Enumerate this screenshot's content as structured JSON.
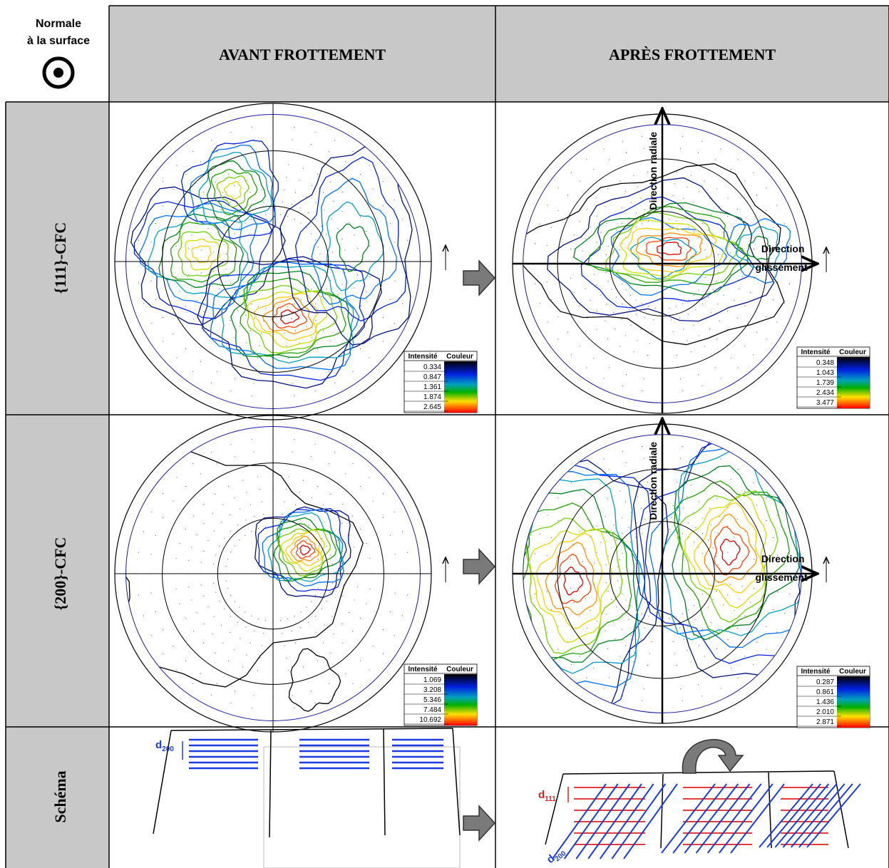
{
  "header": {
    "corner": [
      "Normale",
      "à la surface"
    ],
    "columns": [
      "AVANT FROTTEMENT",
      "APRÈS FROTTEMENT"
    ]
  },
  "rows": [
    {
      "label": "{111}-CFC",
      "legends": [
        {
          "headers": [
            "Intensité",
            "Couleur"
          ],
          "values": [
            "0.334",
            "0.847",
            "1.361",
            "1.874",
            "2.645"
          ]
        },
        {
          "headers": [
            "Intensité",
            "Couleur"
          ],
          "values": [
            "0.348",
            "1.043",
            "1.739",
            "2.434",
            "3.477"
          ]
        }
      ]
    },
    {
      "label": "{200}-CFC",
      "legends": [
        {
          "headers": [
            "Intensité",
            "Couleur"
          ],
          "values": [
            "1.069",
            "3.208",
            "5.346",
            "7.484",
            "10.692"
          ]
        },
        {
          "headers": [
            "Intensité",
            "Couleur"
          ],
          "values": [
            "0.287",
            "0.861",
            "1.436",
            "2.010",
            "2.871"
          ]
        }
      ]
    }
  ],
  "axes": {
    "radial": "Direction radiale",
    "sliding": [
      "Direction",
      "glissement"
    ]
  },
  "schema": {
    "label": "Schéma",
    "d200": {
      "main": "d",
      "sub": "200"
    },
    "d111": {
      "main": "d",
      "sub": "111"
    }
  }
}
